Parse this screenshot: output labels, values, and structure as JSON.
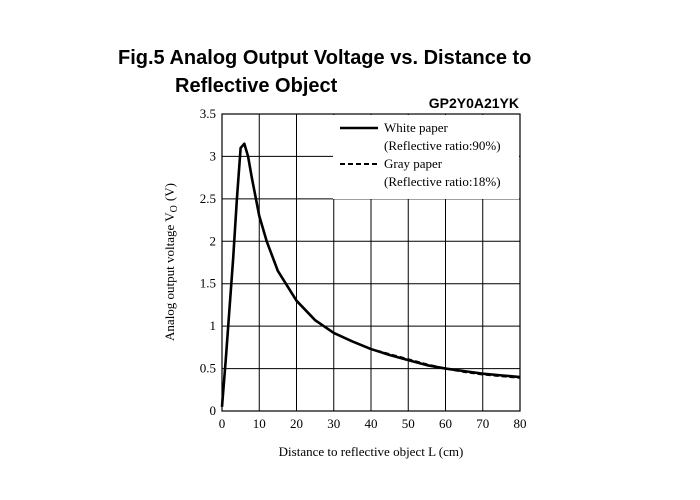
{
  "chart_data": {
    "type": "line",
    "title": [
      "Fig.5 Analog Output Voltage vs. Distance to",
      "Reflective Object"
    ],
    "subtitle": "GP2Y0A21YK",
    "xlabel": "Distance to reflective object L (cm)",
    "ylabel": {
      "text": "Analog output voltage V",
      "subscript": "O",
      "unit": "(V)"
    },
    "x": [
      0,
      1,
      2,
      3,
      4,
      5,
      6,
      7,
      8,
      10,
      12,
      15,
      20,
      25,
      30,
      35,
      40,
      45,
      50,
      55,
      60,
      65,
      70,
      75,
      80
    ],
    "series": [
      {
        "name": "White paper",
        "note": "(Reflective ratio:90%)",
        "color": "#000000",
        "dash": false,
        "values": [
          0.05,
          0.6,
          1.2,
          1.8,
          2.5,
          3.1,
          3.15,
          3.0,
          2.75,
          2.3,
          2.0,
          1.65,
          1.3,
          1.07,
          0.92,
          0.82,
          0.73,
          0.66,
          0.6,
          0.54,
          0.5,
          0.47,
          0.44,
          0.42,
          0.4
        ]
      },
      {
        "name": "Gray paper",
        "note": "(Reflective ratio:18%)",
        "color": "#000000",
        "dash": true,
        "values": [
          0.05,
          0.6,
          1.2,
          1.8,
          2.5,
          3.1,
          3.15,
          3.0,
          2.75,
          2.3,
          2.0,
          1.65,
          1.3,
          1.07,
          0.92,
          0.82,
          0.73,
          0.67,
          0.61,
          0.55,
          0.5,
          0.46,
          0.43,
          0.41,
          0.39
        ]
      }
    ],
    "xlim": [
      0,
      80
    ],
    "xticks": [
      0,
      10,
      20,
      30,
      40,
      50,
      60,
      70,
      80
    ],
    "ylim": [
      0,
      3.5
    ],
    "yticks": [
      0,
      0.5,
      1,
      1.5,
      2,
      2.5,
      3,
      3.5
    ],
    "grid": true,
    "legend": "upper-right"
  }
}
